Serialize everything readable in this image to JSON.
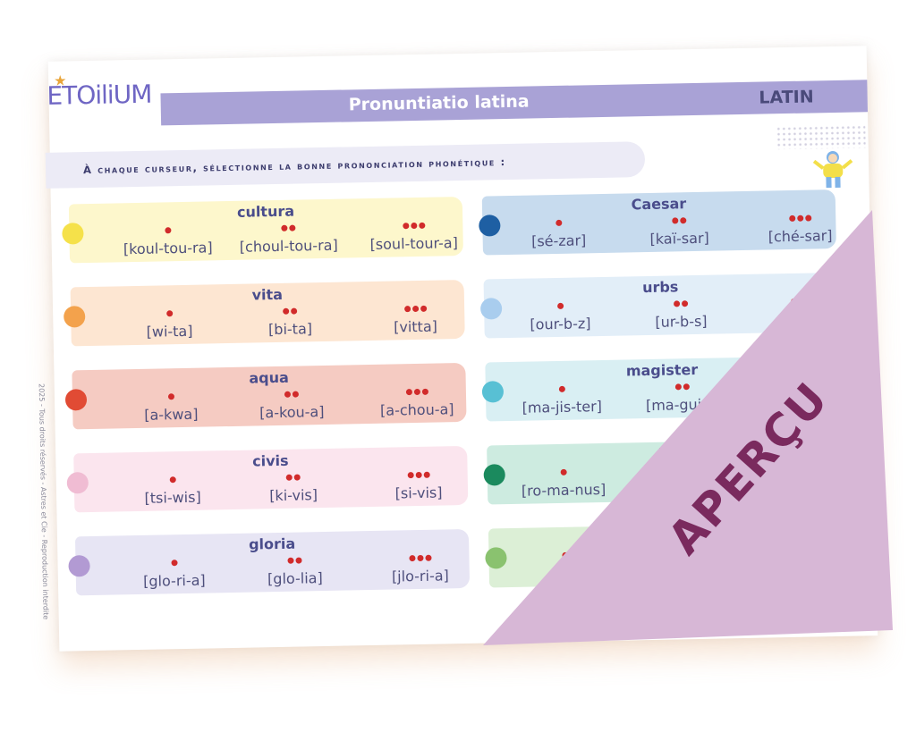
{
  "logo": "ETOiliUM",
  "header": {
    "title": "Pronuntiatio latina",
    "subject": "LATIN"
  },
  "instruction": "À chaque curseur, sélectionne la bonne prononciation phonétique :",
  "copyright": "2025 - Tous droits réservés - Astres et Cie - Reproduction interdite",
  "watermark": "APERÇU",
  "colors": {
    "title_bar": "#a9a2d6",
    "pip": "#d12b2b",
    "watermark_fill": "#d7b7d6",
    "watermark_text": "#7a2a5e"
  },
  "left_rows": [
    {
      "word": "cultura",
      "options": [
        "[koul-tou-ra]",
        "[choul-tou-ra]",
        "[soul-tour-a]"
      ],
      "bg": "#fdf7cc",
      "dot": "#f5e14a"
    },
    {
      "word": "vita",
      "options": [
        "[wi-ta]",
        "[bi-ta]",
        "[vitta]"
      ],
      "bg": "#fde6d2",
      "dot": "#f3a24c"
    },
    {
      "word": "aqua",
      "options": [
        "[a-kwa]",
        "[a-kou-a]",
        "[a-chou-a]"
      ],
      "bg": "#f5cbc2",
      "dot": "#e14b34"
    },
    {
      "word": "civis",
      "options": [
        "[tsi-wis]",
        "[ki-vis]",
        "[si-vis]"
      ],
      "bg": "#fbe5ee",
      "dot": "#f0bcd3"
    },
    {
      "word": "gloria",
      "options": [
        "[glo-ri-a]",
        "[glo-lia]",
        "[jlo-ri-a]"
      ],
      "bg": "#e7e5f4",
      "dot": "#b29ad3"
    }
  ],
  "right_rows": [
    {
      "word": "Caesar",
      "options": [
        "[sé-zar]",
        "[kaï-sar]",
        "[ché-sar]"
      ],
      "bg": "#c7dbee",
      "dot": "#1e5fa3"
    },
    {
      "word": "urbs",
      "options": [
        "[our-b-z]",
        "[ur-b-s]",
        "[u"
      ],
      "bg": "#e2eef8",
      "dot": "#a9cdee"
    },
    {
      "word": "magister",
      "options": [
        "[ma-jis-ter]",
        "[ma-guis-t",
        ""
      ],
      "bg": "#d9eff3",
      "dot": "#58c0d4"
    },
    {
      "word": "R",
      "options": [
        "[ro-ma-nus]",
        "",
        ""
      ],
      "bg": "#cdebe0",
      "dot": "#1b8a5e"
    },
    {
      "word": "",
      "options": [
        "[a",
        "",
        ""
      ],
      "bg": "#dcefd6",
      "dot": "#8ac26f"
    }
  ]
}
